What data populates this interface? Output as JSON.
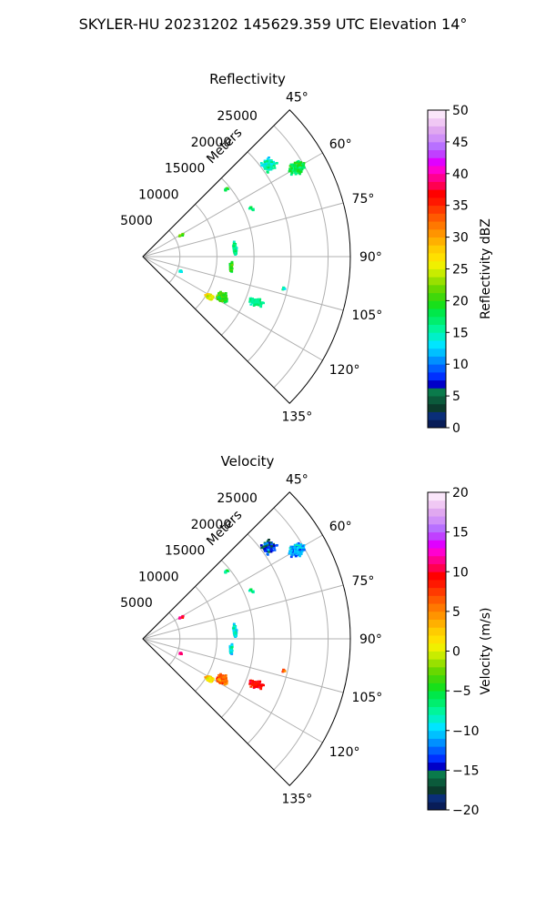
{
  "figure_title": "SKYLER-HU  20231202  145629.359 UTC Elevation 14°",
  "chart_data": [
    {
      "type": "polar-sector",
      "title": "Reflectivity",
      "range_label": "Meters",
      "range_ticks": [
        5000,
        10000,
        15000,
        20000,
        25000
      ],
      "range_tick_labels": [
        "5000",
        "10000",
        "15000",
        "20000",
        "25000"
      ],
      "range_max_m": 28000,
      "angle_ticks_deg": [
        45,
        60,
        75,
        90,
        105,
        120,
        135
      ],
      "angle_tick_labels": [
        "45°",
        "60°",
        "75°",
        "90°",
        "105°",
        "120°",
        "135°"
      ],
      "angle_range_deg": [
        45,
        135
      ],
      "grid": true,
      "colorbar": {
        "label": "Reflectivity dBZ",
        "min": 0,
        "max": 50,
        "ticks": [
          0,
          5,
          10,
          15,
          20,
          25,
          30,
          35,
          40,
          45,
          50
        ],
        "tick_labels": [
          "0",
          "5",
          "10",
          "15",
          "20",
          "25",
          "30",
          "35",
          "40",
          "45",
          "50"
        ],
        "colors": [
          "#081d58",
          "#0a2e78",
          "#0b3b2c",
          "#0b5a3b",
          "#0a7a4b",
          "#0000c8",
          "#0030ff",
          "#0060ff",
          "#0090ff",
          "#00c0ff",
          "#00e5ff",
          "#00f0c8",
          "#00f59a",
          "#00ee6e",
          "#00e84a",
          "#18e01a",
          "#40d80a",
          "#68d800",
          "#98e000",
          "#c8ec00",
          "#f0f000",
          "#ffe000",
          "#ffcc00",
          "#ffb000",
          "#ff9400",
          "#ff7800",
          "#ff5a00",
          "#ff3a00",
          "#ff1800",
          "#ff0000",
          "#ff0050",
          "#ff0090",
          "#ff00d0",
          "#e000ff",
          "#c040ff",
          "#b870ff",
          "#d090f8",
          "#e0a8f0",
          "#f0c8f4",
          "#fae6fa"
        ]
      },
      "echoes": [
        {
          "range_m": 21000,
          "az_deg": 54,
          "n": 110,
          "spread_r": 1300,
          "spread_a": 2.6,
          "value": 15
        },
        {
          "range_m": 24000,
          "az_deg": 60,
          "n": 140,
          "spread_r": 1400,
          "spread_a": 2.8,
          "value": 18
        },
        {
          "range_m": 14500,
          "az_deg": 51,
          "n": 8,
          "spread_r": 400,
          "spread_a": 1.2,
          "value": 17
        },
        {
          "range_m": 16000,
          "az_deg": 66,
          "n": 10,
          "spread_r": 400,
          "spread_a": 1.8,
          "value": 16
        },
        {
          "range_m": 12500,
          "az_deg": 85,
          "n": 60,
          "spread_r": 300,
          "spread_a": 5.5,
          "value": 16
        },
        {
          "range_m": 12000,
          "az_deg": 97,
          "n": 40,
          "spread_r": 300,
          "spread_a": 4.5,
          "value": 20
        },
        {
          "range_m": 12000,
          "az_deg": 117,
          "n": 240,
          "spread_r": 900,
          "spread_a": 3.5,
          "value": 20
        },
        {
          "range_m": 10500,
          "az_deg": 121,
          "n": 90,
          "spread_r": 700,
          "spread_a": 2.2,
          "value": 26
        },
        {
          "range_m": 16500,
          "az_deg": 112,
          "n": 90,
          "spread_r": 1200,
          "spread_a": 2.4,
          "value": 16
        },
        {
          "range_m": 6000,
          "az_deg": 61,
          "n": 8,
          "spread_r": 600,
          "spread_a": 1.5,
          "value": 22
        },
        {
          "range_m": 19500,
          "az_deg": 103,
          "n": 6,
          "spread_r": 300,
          "spread_a": 1.0,
          "value": 15
        },
        {
          "range_m": 5500,
          "az_deg": 111,
          "n": 8,
          "spread_r": 500,
          "spread_a": 2.0,
          "value": 14
        }
      ]
    },
    {
      "type": "polar-sector",
      "title": "Velocity",
      "range_label": "Meters",
      "range_ticks": [
        5000,
        10000,
        15000,
        20000,
        25000
      ],
      "range_tick_labels": [
        "5000",
        "10000",
        "15000",
        "20000",
        "25000"
      ],
      "range_max_m": 28000,
      "angle_ticks_deg": [
        45,
        60,
        75,
        90,
        105,
        120,
        135
      ],
      "angle_tick_labels": [
        "45°",
        "60°",
        "75°",
        "90°",
        "105°",
        "120°",
        "135°"
      ],
      "angle_range_deg": [
        45,
        135
      ],
      "grid": true,
      "colorbar": {
        "label": "Velocity (m/s)",
        "min": -20,
        "max": 20,
        "ticks": [
          -20,
          -15,
          -10,
          -5,
          0,
          5,
          10,
          15,
          20
        ],
        "tick_labels": [
          "−20",
          "−15",
          "−10",
          "−5",
          "0",
          "5",
          "10",
          "15",
          "20"
        ],
        "colors": [
          "#081d58",
          "#0a2e78",
          "#0b3b2c",
          "#0b5a3b",
          "#0a7a4b",
          "#0000c8",
          "#0030ff",
          "#0060ff",
          "#0090ff",
          "#00c0ff",
          "#00e5ff",
          "#00f0c8",
          "#00f59a",
          "#00ee6e",
          "#00e84a",
          "#18e01a",
          "#40d80a",
          "#68d800",
          "#98e000",
          "#c8ec00",
          "#f0f000",
          "#ffe000",
          "#ffcc00",
          "#ffb000",
          "#ff9400",
          "#ff7800",
          "#ff5a00",
          "#ff3a00",
          "#ff1800",
          "#ff0000",
          "#ff0050",
          "#ff0090",
          "#ff00d0",
          "#e000ff",
          "#c040ff",
          "#b870ff",
          "#d090f8",
          "#e0a8f0",
          "#f0c8f4",
          "#fae6fa"
        ]
      },
      "echoes": [
        {
          "range_m": 21000,
          "az_deg": 54,
          "n": 110,
          "spread_r": 1300,
          "spread_a": 2.6,
          "value": -14
        },
        {
          "range_m": 24000,
          "az_deg": 60,
          "n": 140,
          "spread_r": 1400,
          "spread_a": 2.8,
          "value": -11
        },
        {
          "range_m": 14500,
          "az_deg": 51,
          "n": 8,
          "spread_r": 400,
          "spread_a": 1.2,
          "value": -8
        },
        {
          "range_m": 16000,
          "az_deg": 66,
          "n": 10,
          "spread_r": 400,
          "spread_a": 1.8,
          "value": -8
        },
        {
          "range_m": 12500,
          "az_deg": 85,
          "n": 60,
          "spread_r": 300,
          "spread_a": 5.5,
          "value": -9
        },
        {
          "range_m": 12000,
          "az_deg": 97,
          "n": 40,
          "spread_r": 300,
          "spread_a": 4.5,
          "value": -9
        },
        {
          "range_m": 12000,
          "az_deg": 117,
          "n": 240,
          "spread_r": 900,
          "spread_a": 3.5,
          "value": 6
        },
        {
          "range_m": 10500,
          "az_deg": 121,
          "n": 90,
          "spread_r": 700,
          "spread_a": 2.2,
          "value": 2
        },
        {
          "range_m": 16500,
          "az_deg": 112,
          "n": 90,
          "spread_r": 1200,
          "spread_a": 2.4,
          "value": 9
        },
        {
          "range_m": 6000,
          "az_deg": 61,
          "n": 8,
          "spread_r": 600,
          "spread_a": 1.5,
          "value": 11
        },
        {
          "range_m": 19500,
          "az_deg": 103,
          "n": 6,
          "spread_r": 300,
          "spread_a": 1.0,
          "value": 7
        },
        {
          "range_m": 5500,
          "az_deg": 111,
          "n": 8,
          "spread_r": 500,
          "spread_a": 2.0,
          "value": 11
        }
      ]
    }
  ]
}
